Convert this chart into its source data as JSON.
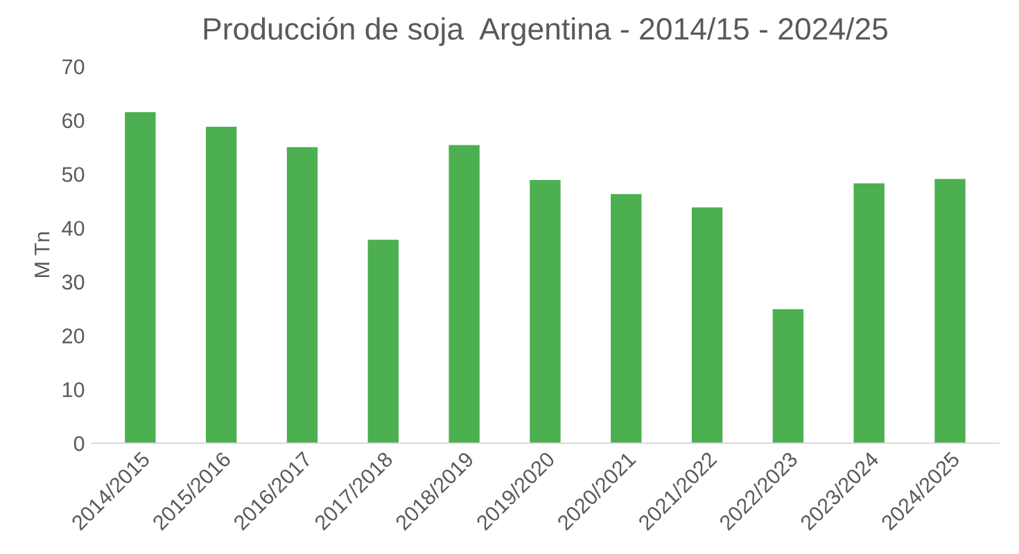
{
  "chart_data": {
    "type": "bar",
    "title": "Producción de soja  Argentina - 2014/15 - 2024/25",
    "ylabel": "M Tn",
    "categories": [
      "2014/2015",
      "2015/2016",
      "2016/2017",
      "2017/2018",
      "2018/2019",
      "2019/2020",
      "2020/2021",
      "2021/2022",
      "2022/2023",
      "2023/2024",
      "2024/2025"
    ],
    "values": [
      61.5,
      58.8,
      55.0,
      37.8,
      55.4,
      48.9,
      46.3,
      43.8,
      24.9,
      48.3,
      49.1
    ],
    "color": "#4caf50",
    "ylim": [
      0,
      70
    ],
    "yticks": [
      0,
      10,
      20,
      30,
      40,
      50,
      60,
      70
    ],
    "grid": false
  }
}
